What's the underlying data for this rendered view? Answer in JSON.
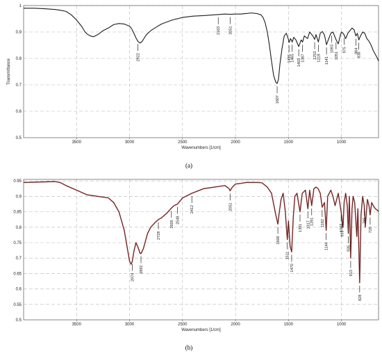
{
  "chart_data": [
    {
      "type": "line",
      "panel_label": "(a)",
      "xlabel": "Wavenumbers [1/cm]",
      "ylabel": "Transmittance",
      "xlim": [
        4000,
        650
      ],
      "ylim": [
        0.5,
        1.0
      ],
      "grid": true,
      "x_ticks": [
        3500,
        3000,
        2500,
        2000,
        1500,
        1000
      ],
      "y_ticks": [
        0.5,
        0.6,
        0.7,
        0.8,
        0.9,
        1
      ],
      "line_color": "#1a1a1a",
      "series": [
        {
          "x": [
            4000,
            3900,
            3800,
            3700,
            3650,
            3600,
            3550,
            3500,
            3450,
            3420,
            3400,
            3370,
            3340,
            3300,
            3250,
            3200,
            3150,
            3100,
            3050,
            3000,
            2980,
            2960,
            2940,
            2920,
            2900,
            2880,
            2860,
            2840,
            2800,
            2750,
            2700,
            2600,
            2500,
            2400,
            2300,
            2200,
            2163,
            2100,
            2051,
            2000,
            1950,
            1900,
            1850,
            1800,
            1760,
            1740,
            1720,
            1700,
            1680,
            1660,
            1640,
            1620,
            1607,
            1595,
            1580,
            1560,
            1540,
            1520,
            1500,
            1495,
            1480,
            1465,
            1450,
            1430,
            1403,
            1380,
            1367,
            1350,
            1320,
            1300,
            1270,
            1253,
            1240,
            1218,
            1200,
            1180,
            1160,
            1141,
            1120,
            1100,
            1080,
            1050,
            1030,
            1010,
            1000,
            980,
            960,
            940,
            920,
            900,
            880,
            864,
            850,
            836,
            820,
            800,
            780,
            760,
            740,
            720,
            700,
            680,
            660,
            650
          ],
          "y": [
            0.99,
            0.99,
            0.988,
            0.985,
            0.982,
            0.978,
            0.965,
            0.945,
            0.92,
            0.9,
            0.892,
            0.885,
            0.882,
            0.89,
            0.905,
            0.915,
            0.928,
            0.932,
            0.93,
            0.922,
            0.912,
            0.896,
            0.878,
            0.864,
            0.858,
            0.865,
            0.878,
            0.89,
            0.905,
            0.918,
            0.93,
            0.945,
            0.955,
            0.96,
            0.962,
            0.965,
            0.966,
            0.968,
            0.967,
            0.968,
            0.968,
            0.97,
            0.972,
            0.97,
            0.965,
            0.955,
            0.935,
            0.9,
            0.85,
            0.79,
            0.735,
            0.71,
            0.705,
            0.72,
            0.78,
            0.84,
            0.885,
            0.895,
            0.872,
            0.86,
            0.875,
            0.862,
            0.88,
            0.87,
            0.845,
            0.87,
            0.862,
            0.885,
            0.875,
            0.9,
            0.885,
            0.872,
            0.89,
            0.862,
            0.895,
            0.902,
            0.888,
            0.852,
            0.875,
            0.895,
            0.9,
            0.87,
            0.855,
            0.888,
            0.9,
            0.893,
            0.875,
            0.895,
            0.905,
            0.915,
            0.908,
            0.885,
            0.895,
            0.87,
            0.885,
            0.9,
            0.895,
            0.875,
            0.865,
            0.85,
            0.83,
            0.815,
            0.8,
            0.79
          ]
        }
      ],
      "peak_labels": [
        "2922",
        "2163",
        "2051",
        "1607",
        "1495",
        "1465",
        "1403",
        "1367",
        "1253",
        "1218",
        "1141",
        "1093",
        "1051",
        "975",
        "864",
        "836"
      ]
    },
    {
      "type": "line",
      "panel_label": "(b)",
      "xlabel": "Wavenumbers [1/cm]",
      "ylabel": "",
      "xlim": [
        4000,
        650
      ],
      "ylim": [
        0.5,
        0.955
      ],
      "grid": true,
      "x_ticks": [
        3500,
        3000,
        2500,
        2000,
        1500,
        1000
      ],
      "y_ticks": [
        0.5,
        0.55,
        0.6,
        0.65,
        0.7,
        0.75,
        0.8,
        0.85,
        0.9,
        0.95
      ],
      "line_color": "#5a2418",
      "peak_color": "#d94a6e",
      "series": [
        {
          "x": [
            4000,
            3800,
            3700,
            3650,
            3600,
            3500,
            3400,
            3300,
            3200,
            3150,
            3100,
            3050,
            3020,
            3000,
            2985,
            2974,
            2960,
            2940,
            2920,
            2900,
            2892,
            2870,
            2850,
            2830,
            2800,
            2760,
            2728,
            2700,
            2650,
            2605,
            2580,
            2548,
            2500,
            2412,
            2300,
            2200,
            2100,
            2060,
            2051,
            2030,
            2000,
            1950,
            1900,
            1850,
            1800,
            1750,
            1700,
            1660,
            1640,
            1620,
            1600,
            1590,
            1570,
            1550,
            1530,
            1511,
            1500,
            1485,
            1470,
            1455,
            1440,
            1420,
            1391,
            1370,
            1340,
            1317,
            1300,
            1281,
            1260,
            1240,
            1220,
            1200,
            1182,
            1160,
            1144,
            1130,
            1100,
            1080,
            1060,
            1030,
            1003,
            985,
            975,
            960,
            945,
            935,
            925,
            913,
            900,
            890,
            875,
            855,
            845,
            828,
            815,
            800,
            785,
            775,
            755,
            740,
            729,
            715,
            700,
            680,
            660,
            650
          ],
          "y": [
            0.945,
            0.947,
            0.948,
            0.944,
            0.935,
            0.92,
            0.905,
            0.9,
            0.895,
            0.88,
            0.85,
            0.79,
            0.73,
            0.69,
            0.68,
            0.69,
            0.72,
            0.75,
            0.735,
            0.715,
            0.715,
            0.73,
            0.755,
            0.78,
            0.8,
            0.815,
            0.825,
            0.83,
            0.845,
            0.862,
            0.87,
            0.875,
            0.895,
            0.91,
            0.925,
            0.93,
            0.935,
            0.925,
            0.918,
            0.93,
            0.94,
            0.942,
            0.945,
            0.945,
            0.945,
            0.944,
            0.93,
            0.91,
            0.875,
            0.84,
            0.81,
            0.84,
            0.89,
            0.91,
            0.85,
            0.76,
            0.82,
            0.74,
            0.72,
            0.83,
            0.9,
            0.91,
            0.85,
            0.91,
            0.92,
            0.86,
            0.92,
            0.87,
            0.925,
            0.93,
            0.925,
            0.91,
            0.865,
            0.88,
            0.79,
            0.9,
            0.92,
            0.9,
            0.87,
            0.91,
            0.85,
            0.8,
            0.88,
            0.91,
            0.87,
            0.78,
            0.9,
            0.7,
            0.86,
            0.9,
            0.88,
            0.77,
            0.86,
            0.62,
            0.84,
            0.9,
            0.87,
            0.8,
            0.89,
            0.87,
            0.84,
            0.88,
            0.87,
            0.86,
            0.855,
            0.85
          ]
        }
      ],
      "peak_labels": [
        "2974",
        "2892",
        "2728",
        "2605",
        "2548",
        "2412",
        "2051",
        "1600",
        "1511",
        "1470",
        "1391",
        "1317",
        "1281",
        "1182",
        "1144",
        "1003",
        "995",
        "935",
        "913",
        "828",
        "785",
        "729"
      ]
    }
  ]
}
